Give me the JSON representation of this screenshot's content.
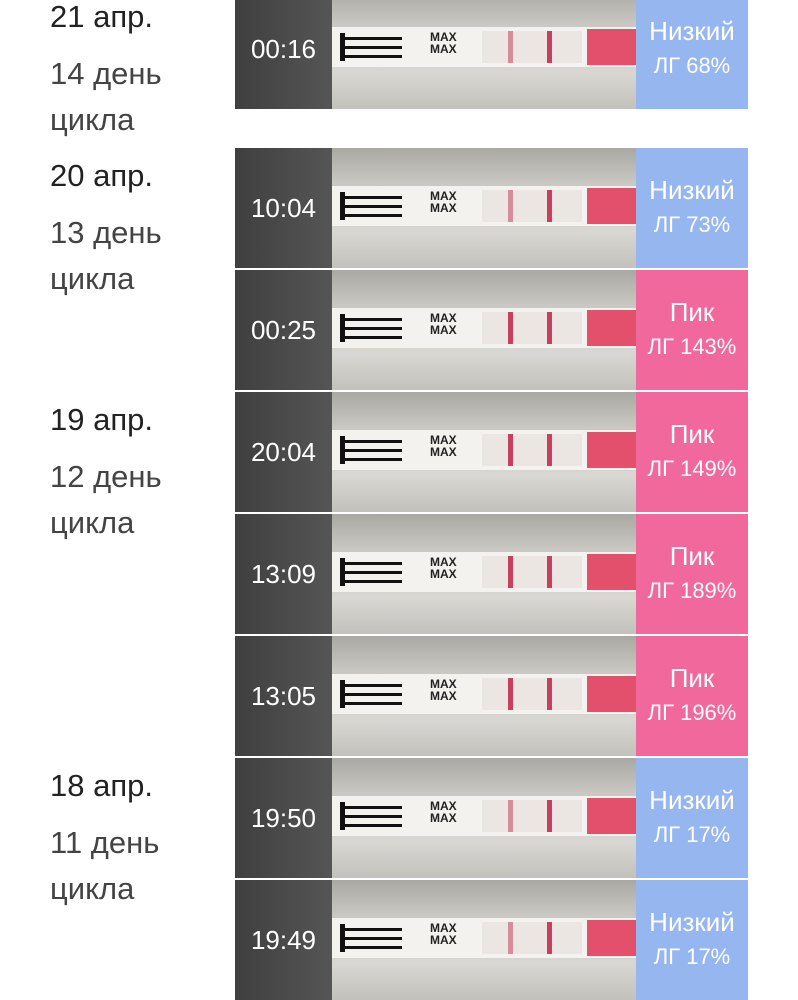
{
  "strip_label": "MAX",
  "days": [
    {
      "date": "21 апр.",
      "cycle_day": "14 день цикла",
      "tests": [
        {
          "time": "00:16",
          "level": "Низкий",
          "lh": "ЛГ 68%",
          "kind": "low"
        }
      ]
    },
    {
      "date": "20 апр.",
      "cycle_day": "13 день цикла",
      "tests": [
        {
          "time": "10:04",
          "level": "Низкий",
          "lh": "ЛГ 73%",
          "kind": "low"
        },
        {
          "time": "00:25",
          "level": "Пик",
          "lh": "ЛГ 143%",
          "kind": "peak"
        }
      ]
    },
    {
      "date": "19 апр.",
      "cycle_day": "12 день цикла",
      "tests": [
        {
          "time": "20:04",
          "level": "Пик",
          "lh": "ЛГ 149%",
          "kind": "peak"
        },
        {
          "time": "13:09",
          "level": "Пик",
          "lh": "ЛГ 189%",
          "kind": "peak"
        },
        {
          "time": "13:05",
          "level": "Пик",
          "lh": "ЛГ 196%",
          "kind": "peak"
        }
      ]
    },
    {
      "date": "18 апр.",
      "cycle_day": "11 день цикла",
      "tests": [
        {
          "time": "19:50",
          "level": "Низкий",
          "lh": "ЛГ 17%",
          "kind": "low"
        },
        {
          "time": "19:49",
          "level": "Низкий",
          "lh": "ЛГ 17%",
          "kind": "low"
        }
      ]
    }
  ]
}
